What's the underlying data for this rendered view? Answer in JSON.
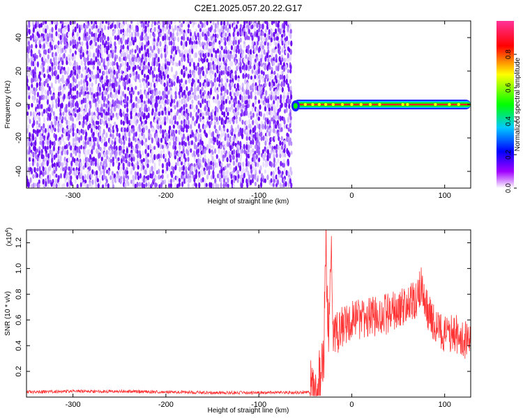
{
  "title": "C2E1.2025.057.20.22.G17",
  "chart_data": [
    {
      "type": "heatmap",
      "xlabel": "Height of straight line (km)",
      "ylabel": "Frequency (Hz)",
      "xlim": [
        -350,
        128
      ],
      "ylim": [
        -50,
        50
      ],
      "x_ticks": [
        -300,
        -200,
        -100,
        0,
        100
      ],
      "y_ticks": [
        -40,
        -20,
        0,
        20,
        40
      ],
      "colorbar": {
        "label": "Normalized spectral amplitude",
        "range": [
          0,
          1
        ],
        "ticks": [
          "0.0",
          "0.2",
          "0.4",
          "0.6",
          "0.8"
        ],
        "colors": [
          "#ffffff",
          "#a000ff",
          "#0000ff",
          "#00c8ff",
          "#00ff00",
          "#ffff00",
          "#ff0000",
          "#ff3399"
        ]
      },
      "noise_region_x": [
        -350,
        -65
      ],
      "signal_band": {
        "x": [
          -65,
          128
        ],
        "frequency": 0,
        "peak_points": [
          -50,
          -42,
          -35,
          -28,
          -20,
          -10,
          0,
          10,
          20,
          30,
          55,
          60,
          90,
          105,
          115
        ]
      }
    },
    {
      "type": "line",
      "xlabel": "Height of straight line (km)",
      "ylabel": "SNR (10 * v/v)",
      "y_scale_label": "(x10",
      "y_scale_exp": "4",
      "xlim": [
        -350,
        128
      ],
      "ylim": [
        0,
        1.3
      ],
      "x_ticks": [
        -300,
        -200,
        -100,
        0,
        100
      ],
      "y_ticks": [
        0.2,
        0.4,
        0.6,
        0.8,
        1.0,
        1.2
      ],
      "series": [
        {
          "color": "#ff3333",
          "x": [
            -350,
            -300,
            -250,
            -200,
            -150,
            -100,
            -60,
            -45,
            -40,
            -35,
            -30,
            -28,
            -25,
            -22,
            -20,
            -15,
            -10,
            0,
            10,
            20,
            30,
            40,
            50,
            60,
            70,
            75,
            80,
            90,
            100,
            110,
            120,
            128
          ],
          "y": [
            0.04,
            0.045,
            0.045,
            0.04,
            0.035,
            0.035,
            0.035,
            0.04,
            0.06,
            0.12,
            0.3,
            1.25,
            0.45,
            1.3,
            0.5,
            0.5,
            0.55,
            0.6,
            0.6,
            0.62,
            0.63,
            0.65,
            0.68,
            0.72,
            0.74,
            0.9,
            0.7,
            0.55,
            0.48,
            0.5,
            0.45,
            0.42
          ]
        }
      ]
    }
  ]
}
